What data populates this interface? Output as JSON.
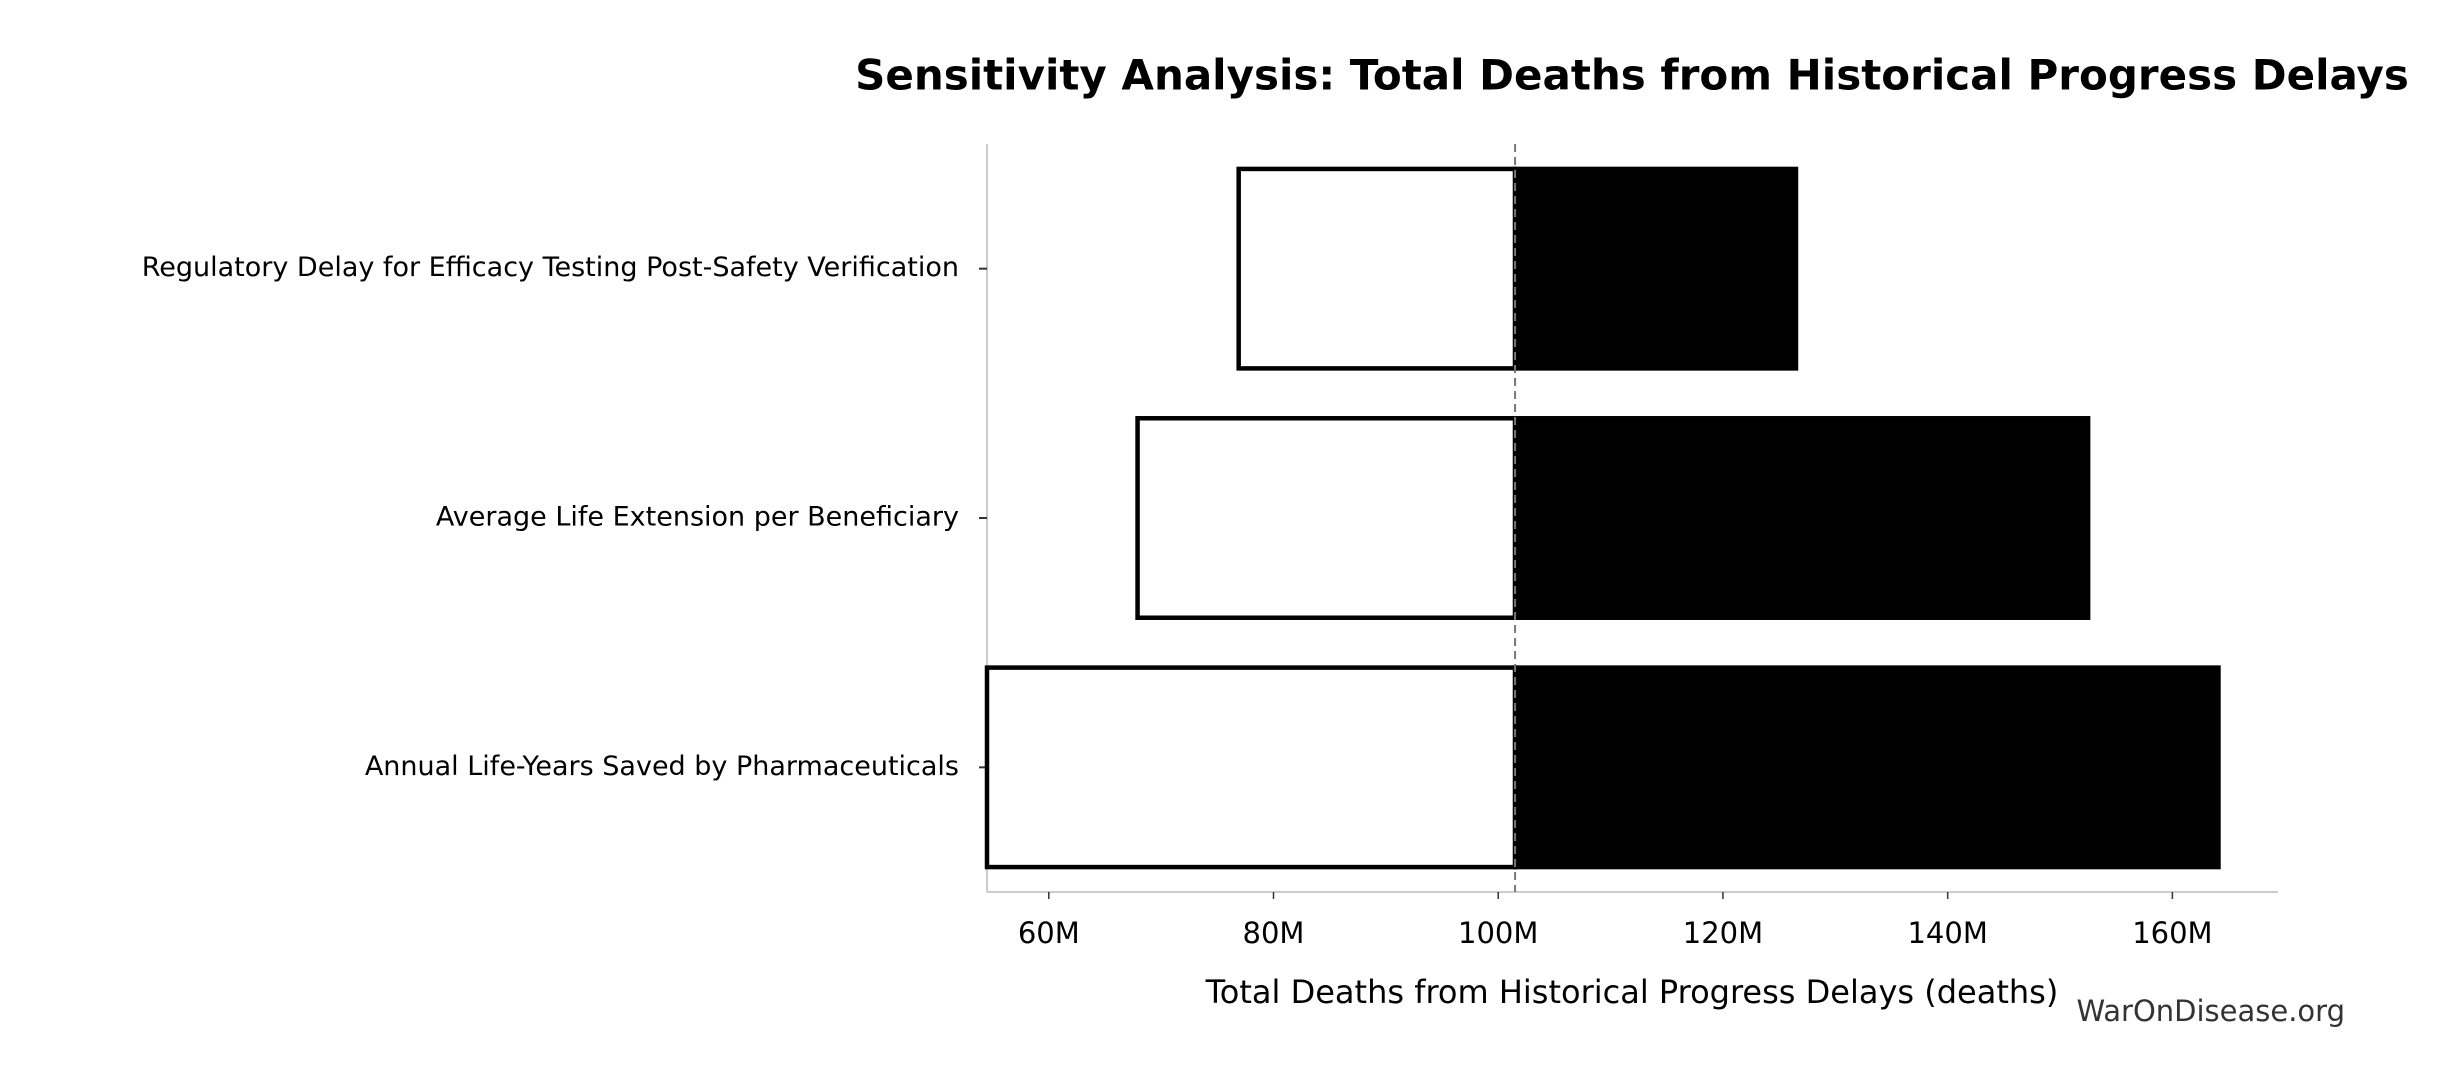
{
  "chart_data": {
    "type": "tornado",
    "title": "Sensitivity Analysis: Total Deaths from Historical Progress Delays",
    "x_label": "Total Deaths from Historical Progress Delays (deaths)",
    "watermark": "WarOnDisease.org",
    "categories": [
      "Regulatory Delay for Efficacy Testing Post-Safety Verification",
      "Average Life Extension per Beneficiary",
      "Annual Life-Years Saved by Pharmaceuticals"
    ],
    "baseline": 101500000,
    "series": [
      {
        "color": "#ffffff",
        "values": [
          76900000,
          67900000,
          54500000
        ]
      },
      {
        "color": "#000000",
        "values": [
          126500000,
          152500000,
          164100000
        ]
      }
    ],
    "xlim": [
      54500000,
      169400000
    ],
    "xticks": [
      {
        "value": 60000000,
        "label": "60M"
      },
      {
        "value": 80000000,
        "label": "80M"
      },
      {
        "value": 100000000,
        "label": "100M"
      },
      {
        "value": 120000000,
        "label": "120M"
      },
      {
        "value": 140000000,
        "label": "140M"
      },
      {
        "value": 160000000,
        "label": "160M"
      }
    ]
  }
}
